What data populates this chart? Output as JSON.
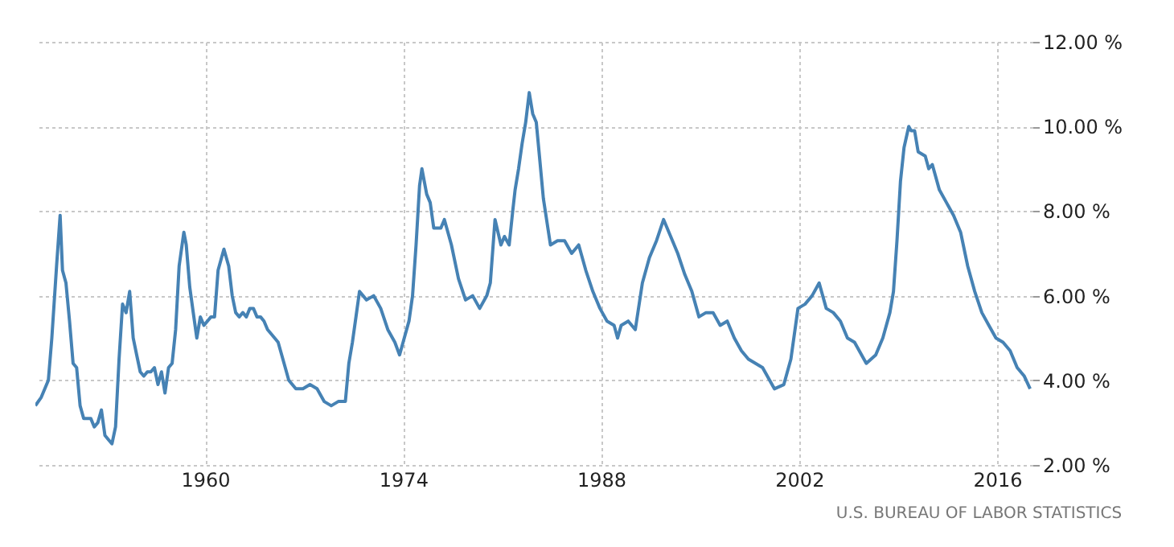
{
  "chart_data": {
    "type": "line",
    "x": [
      "1948-01",
      "1948-06",
      "1948-12",
      "1949-03",
      "1949-07",
      "1949-10",
      "1949-12",
      "1950-03",
      "1950-06",
      "1950-09",
      "1950-12",
      "1951-03",
      "1951-06",
      "1951-12",
      "1952-03",
      "1952-06",
      "1952-09",
      "1952-12",
      "1953-03",
      "1953-06",
      "1953-09",
      "1953-12",
      "1954-03",
      "1954-06",
      "1954-09",
      "1954-12",
      "1955-03",
      "1955-06",
      "1955-09",
      "1955-12",
      "1956-03",
      "1956-06",
      "1956-09",
      "1956-12",
      "1957-03",
      "1957-06",
      "1957-09",
      "1957-12",
      "1958-03",
      "1958-07",
      "1958-09",
      "1958-12",
      "1959-03",
      "1959-06",
      "1959-09",
      "1959-12",
      "1960-03",
      "1960-06",
      "1960-09",
      "1960-12",
      "1961-03",
      "1961-05",
      "1961-09",
      "1961-12",
      "1962-03",
      "1962-06",
      "1962-09",
      "1962-12",
      "1963-03",
      "1963-06",
      "1963-09",
      "1963-12",
      "1964-03",
      "1964-06",
      "1964-09",
      "1964-12",
      "1965-03",
      "1965-06",
      "1965-09",
      "1965-12",
      "1966-06",
      "1966-12",
      "1967-06",
      "1967-12",
      "1968-06",
      "1968-12",
      "1969-06",
      "1969-12",
      "1970-03",
      "1970-06",
      "1970-09",
      "1970-12",
      "1971-06",
      "1971-12",
      "1972-06",
      "1972-12",
      "1973-06",
      "1973-10",
      "1974-03",
      "1974-06",
      "1974-09",
      "1974-12",
      "1975-03",
      "1975-05",
      "1975-09",
      "1975-12",
      "1976-03",
      "1976-06",
      "1976-09",
      "1976-12",
      "1977-06",
      "1977-12",
      "1978-06",
      "1978-12",
      "1979-06",
      "1979-12",
      "1980-03",
      "1980-07",
      "1980-12",
      "1981-03",
      "1981-07",
      "1981-10",
      "1981-12",
      "1982-03",
      "1982-06",
      "1982-09",
      "1982-12",
      "1983-03",
      "1983-06",
      "1983-09",
      "1983-12",
      "1984-06",
      "1984-12",
      "1985-06",
      "1985-12",
      "1986-06",
      "1986-12",
      "1987-06",
      "1987-12",
      "1988-06",
      "1988-12",
      "1989-03",
      "1989-06",
      "1989-12",
      "1990-06",
      "1990-12",
      "1991-06",
      "1991-12",
      "1992-06",
      "1992-12",
      "1993-06",
      "1993-12",
      "1994-06",
      "1994-12",
      "1995-06",
      "1995-12",
      "1996-06",
      "1996-12",
      "1997-06",
      "1997-12",
      "1998-06",
      "1998-12",
      "1999-06",
      "1999-12",
      "2000-04",
      "2000-12",
      "2001-06",
      "2001-12",
      "2002-06",
      "2002-12",
      "2003-06",
      "2003-12",
      "2004-06",
      "2004-12",
      "2005-06",
      "2005-12",
      "2006-06",
      "2006-10",
      "2007-06",
      "2007-12",
      "2008-06",
      "2008-09",
      "2008-12",
      "2009-03",
      "2009-06",
      "2009-10",
      "2009-12",
      "2010-03",
      "2010-06",
      "2010-12",
      "2011-03",
      "2011-06",
      "2011-12",
      "2012-06",
      "2012-12",
      "2013-06",
      "2013-12",
      "2014-06",
      "2014-12",
      "2015-06",
      "2015-12",
      "2016-06",
      "2016-12",
      "2017-06",
      "2017-12",
      "2018-05"
    ],
    "series": [
      {
        "color": "#4682b4",
        "values": [
          3.4,
          3.6,
          4.0,
          5.0,
          6.7,
          7.9,
          6.6,
          6.3,
          5.4,
          4.4,
          4.3,
          3.4,
          3.1,
          3.1,
          2.9,
          3.0,
          3.3,
          2.7,
          2.6,
          2.5,
          2.9,
          4.5,
          5.8,
          5.6,
          6.1,
          5.0,
          4.6,
          4.2,
          4.1,
          4.2,
          4.2,
          4.3,
          3.9,
          4.2,
          3.7,
          4.3,
          4.4,
          5.2,
          6.7,
          7.5,
          7.2,
          6.2,
          5.6,
          5.0,
          5.5,
          5.3,
          5.4,
          5.5,
          5.5,
          6.6,
          6.9,
          7.1,
          6.7,
          6.0,
          5.6,
          5.5,
          5.6,
          5.5,
          5.7,
          5.7,
          5.5,
          5.5,
          5.4,
          5.2,
          5.1,
          5.0,
          4.9,
          4.6,
          4.3,
          4.0,
          3.8,
          3.8,
          3.9,
          3.8,
          3.5,
          3.4,
          3.5,
          3.5,
          4.4,
          4.9,
          5.5,
          6.1,
          5.9,
          6.0,
          5.7,
          5.2,
          4.9,
          4.6,
          5.1,
          5.4,
          6.0,
          7.2,
          8.6,
          9.0,
          8.4,
          8.2,
          7.6,
          7.6,
          7.6,
          7.8,
          7.2,
          6.4,
          5.9,
          6.0,
          5.7,
          6.0,
          6.3,
          7.8,
          7.2,
          7.4,
          7.2,
          8.0,
          8.5,
          9.0,
          9.6,
          10.1,
          10.8,
          10.3,
          10.1,
          9.2,
          8.3,
          7.2,
          7.3,
          7.3,
          7.0,
          7.2,
          6.6,
          6.1,
          5.7,
          5.4,
          5.3,
          5.0,
          5.3,
          5.4,
          5.2,
          6.3,
          6.9,
          7.3,
          7.8,
          7.4,
          7.0,
          6.5,
          6.1,
          5.5,
          5.6,
          5.6,
          5.3,
          5.4,
          5.0,
          4.7,
          4.5,
          4.4,
          4.3,
          4.0,
          3.8,
          3.9,
          4.5,
          5.7,
          5.8,
          6.0,
          6.3,
          5.7,
          5.6,
          5.4,
          5.0,
          4.9,
          4.6,
          4.4,
          4.6,
          5.0,
          5.6,
          6.1,
          7.3,
          8.7,
          9.5,
          10.0,
          9.9,
          9.9,
          9.4,
          9.3,
          9.0,
          9.1,
          8.5,
          8.2,
          7.9,
          7.5,
          6.7,
          6.1,
          5.6,
          5.3,
          5.0,
          4.9,
          4.7,
          4.3,
          4.1,
          3.8
        ]
      }
    ],
    "xlim": [
      "1948-01",
      "2018-07"
    ],
    "xticks": [
      "1960",
      "1974",
      "1988",
      "2002",
      "2016"
    ],
    "ylim": [
      2,
      12
    ],
    "yticks": [
      {
        "value": 2,
        "label": "2.00 %"
      },
      {
        "value": 4,
        "label": "4.00 %"
      },
      {
        "value": 6,
        "label": "6.00 %"
      },
      {
        "value": 8,
        "label": "8.00 %"
      },
      {
        "value": 10,
        "label": "10.00 %"
      },
      {
        "value": 12,
        "label": "12.00 %"
      }
    ],
    "grid": true,
    "line_style": "solid",
    "annotations": [
      "U.S. BUREAU OF LABOR STATISTICS"
    ]
  }
}
